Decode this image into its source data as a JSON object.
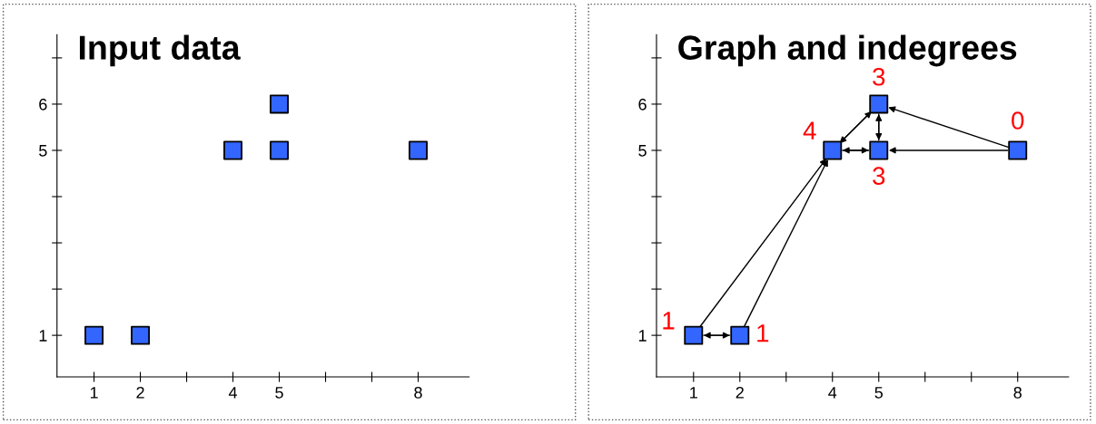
{
  "chart_data": [
    {
      "type": "scatter",
      "title": "Input data",
      "marker": "square",
      "x": [
        1,
        2,
        4,
        5,
        5,
        8
      ],
      "series": [
        {
          "color": "#3366ff",
          "values": [
            1,
            1,
            5,
            5,
            6,
            5
          ]
        }
      ],
      "xlim": [
        0.2,
        9.1
      ],
      "ylim": [
        0.1,
        7.5
      ],
      "xticks": [
        1,
        2,
        {
          "value": 3,
          "label": null
        },
        4,
        5,
        {
          "value": 6,
          "label": null
        },
        {
          "value": 7,
          "label": null
        },
        8
      ],
      "yticks": [
        1,
        {
          "value": 2,
          "label": null
        },
        {
          "value": 3,
          "label": null
        },
        {
          "value": 4,
          "label": null
        },
        5,
        6,
        {
          "value": 7,
          "label": null
        }
      ]
    },
    {
      "type": "scatter",
      "title": "Graph and indegrees",
      "marker": "square",
      "x": [
        1,
        2,
        4,
        5,
        5,
        8
      ],
      "series": [
        {
          "color": "#3366ff",
          "values": [
            1,
            1,
            5,
            5,
            6,
            5
          ]
        }
      ],
      "annotations": [
        {
          "text": "1",
          "x": 1,
          "y": 1
        },
        {
          "text": "1",
          "x": 2,
          "y": 1
        },
        {
          "text": "4",
          "x": 4,
          "y": 5
        },
        {
          "text": "3",
          "x": 5,
          "y": 5
        },
        {
          "text": "3",
          "x": 5,
          "y": 6
        },
        {
          "text": "0",
          "x": 8,
          "y": 5
        }
      ],
      "xlim": [
        0.2,
        9.1
      ],
      "ylim": [
        0.1,
        7.5
      ],
      "xticks": [
        1,
        2,
        {
          "value": 3,
          "label": null
        },
        4,
        5,
        {
          "value": 6,
          "label": null
        },
        {
          "value": 7,
          "label": null
        },
        8
      ],
      "yticks": [
        1,
        {
          "value": 2,
          "label": null
        },
        {
          "value": 3,
          "label": null
        },
        {
          "value": 4,
          "label": null
        },
        5,
        6,
        {
          "value": 7,
          "label": null
        }
      ]
    }
  ]
}
